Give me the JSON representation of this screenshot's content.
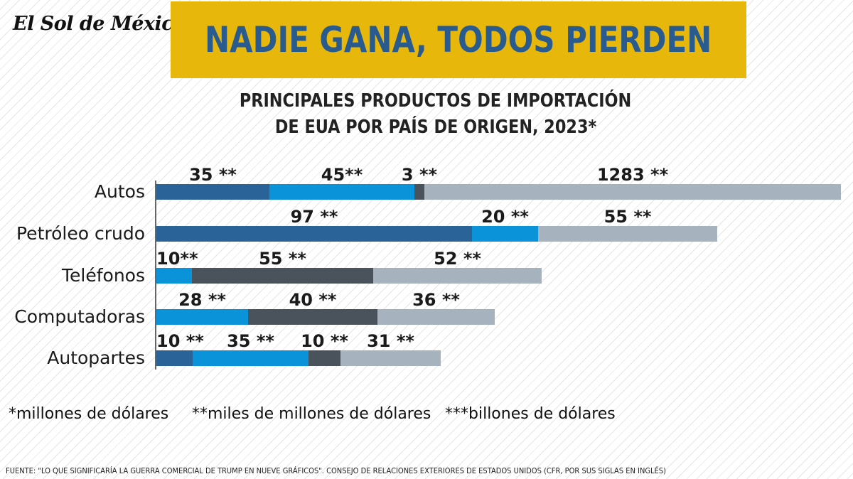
{
  "brand": "El Sol de México",
  "headline": "NADIE GANA, TODOS PIERDEN",
  "subtitle_line1": "PRINCIPALES PRODUCTOS DE IMPORTACIÓN",
  "subtitle_line2": "DE EUA POR PAÍS DE ORIGEN, 2023*",
  "colors": {
    "series1": "#2a6398",
    "series2": "#0b93da",
    "series3": "#4a535b",
    "series4": "#a6b2bd",
    "banner": "#e8b70c",
    "headline_text": "#2a5b8f"
  },
  "chart_data": {
    "type": "bar",
    "orientation": "horizontal",
    "stacked": true,
    "categories": [
      "Autos",
      "Petróleo crudo",
      "Teléfonos",
      "Computadoras",
      "Autopartes"
    ],
    "rows": [
      {
        "category": "Autos",
        "segments": [
          {
            "series": 1,
            "value": 35,
            "label": "35 **"
          },
          {
            "series": 2,
            "value": 45,
            "label": "45**"
          },
          {
            "series": 3,
            "value": 3,
            "label": "3 **"
          },
          {
            "series": 4,
            "value": 1283,
            "label": "1283 **"
          }
        ]
      },
      {
        "category": "Petróleo crudo",
        "segments": [
          {
            "series": 1,
            "value": 97,
            "label": "97 **"
          },
          {
            "series": 2,
            "value": 20,
            "label": "20 **"
          },
          {
            "series": 4,
            "value": 55,
            "label": "55 **"
          }
        ]
      },
      {
        "category": "Teléfonos",
        "segments": [
          {
            "series": 2,
            "value": 10,
            "label": "10**"
          },
          {
            "series": 3,
            "value": 55,
            "label": "55 **"
          },
          {
            "series": 4,
            "value": 52,
            "label": "52 **"
          }
        ]
      },
      {
        "category": "Computadoras",
        "segments": [
          {
            "series": 2,
            "value": 28,
            "label": "28 **"
          },
          {
            "series": 3,
            "value": 40,
            "label": "40 **"
          },
          {
            "series": 4,
            "value": 36,
            "label": "36 **"
          }
        ]
      },
      {
        "category": "Autopartes",
        "segments": [
          {
            "series": 1,
            "value": 10,
            "label": "10 **"
          },
          {
            "series": 2,
            "value": 35,
            "label": "35 **"
          },
          {
            "series": 3,
            "value": 10,
            "label": "10 **"
          },
          {
            "series": 4,
            "value": 31,
            "label": "31 **"
          }
        ]
      }
    ]
  },
  "notes": {
    "note1": "*millones de dólares",
    "note2": "**miles de millones de dólares",
    "note3": "***billones de dólares"
  },
  "source": "FUENTE: \"LO QUE SIGNIFICARÍA LA GUERRA COMERCIAL DE TRUMP EN NUEVE GRÁFICOS\". CONSEJO DE RELACIONES EXTERIORES DE ESTADOS UNIDOS (CFR, POR SUS SIGLAS EN INGLÉS)"
}
